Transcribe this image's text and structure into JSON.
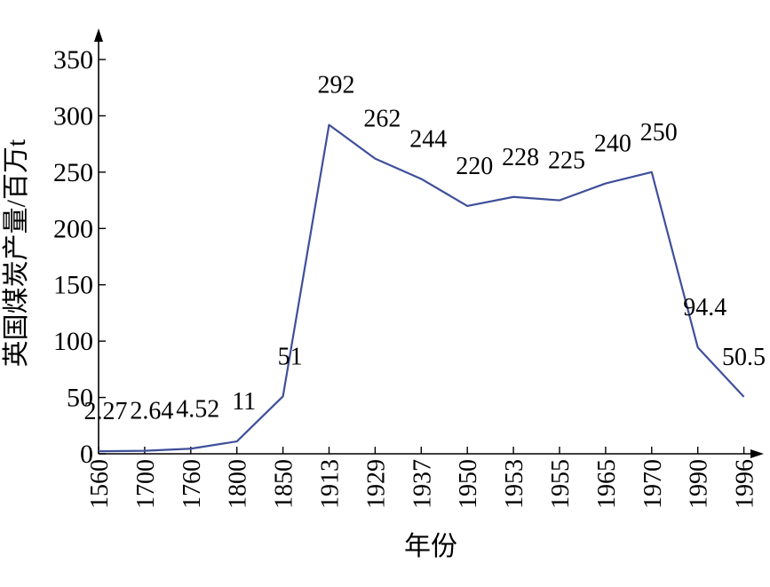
{
  "chart_data": {
    "type": "line",
    "categories": [
      "1560",
      "1700",
      "1760",
      "1800",
      "1850",
      "1913",
      "1929",
      "1937",
      "1950",
      "1953",
      "1955",
      "1965",
      "1970",
      "1990",
      "1996"
    ],
    "series": [
      {
        "values": [
          2.27,
          2.64,
          4.52,
          11,
          51,
          292,
          262,
          244,
          220,
          228,
          225,
          240,
          250,
          94.4,
          50.5
        ],
        "labels": [
          "2.27",
          "2.64",
          "4.52",
          "11",
          "51",
          "292",
          "262",
          "244",
          "220",
          "228",
          "225",
          "240",
          "250",
          "94.4",
          "50.5"
        ]
      }
    ],
    "xlabel": "年份",
    "ylabel": "英国煤炭产量/百万t",
    "ylim": [
      0,
      350
    ],
    "yticks": [
      0,
      50,
      100,
      150,
      200,
      250,
      300,
      350
    ],
    "grid": false,
    "line_color": "#3f4f9a"
  }
}
